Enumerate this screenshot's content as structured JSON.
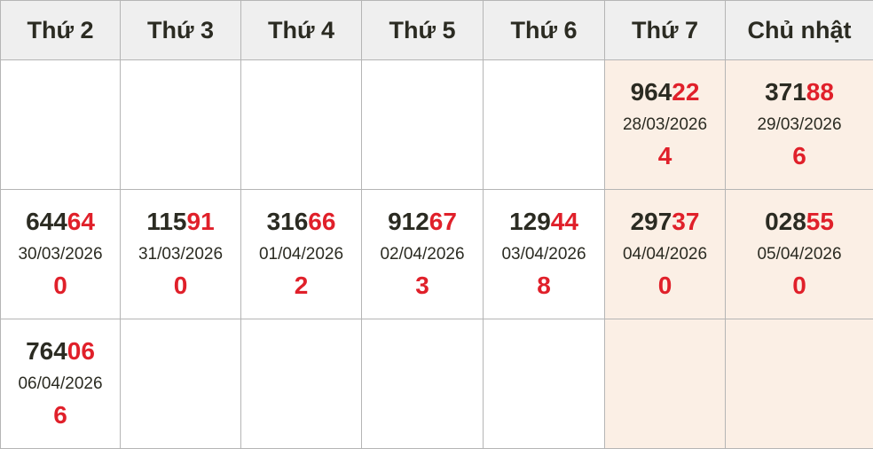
{
  "headers": [
    "Thứ 2",
    "Thứ 3",
    "Thứ 4",
    "Thứ 5",
    "Thứ 6",
    "Thứ 7",
    "Chủ nhật"
  ],
  "colors": {
    "accent": "#e0202a",
    "weekend_bg": "#fbefe5",
    "header_bg": "#efefef"
  },
  "rows": [
    [
      null,
      null,
      null,
      null,
      null,
      {
        "head": "964",
        "tail": "22",
        "date": "28/03/2026",
        "sum": "4"
      },
      {
        "head": "371",
        "tail": "88",
        "date": "29/03/2026",
        "sum": "6"
      }
    ],
    [
      {
        "head": "644",
        "tail": "64",
        "date": "30/03/2026",
        "sum": "0"
      },
      {
        "head": "115",
        "tail": "91",
        "date": "31/03/2026",
        "sum": "0"
      },
      {
        "head": "316",
        "tail": "66",
        "date": "01/04/2026",
        "sum": "2"
      },
      {
        "head": "912",
        "tail": "67",
        "date": "02/04/2026",
        "sum": "3"
      },
      {
        "head": "129",
        "tail": "44",
        "date": "03/04/2026",
        "sum": "8"
      },
      {
        "head": "297",
        "tail": "37",
        "date": "04/04/2026",
        "sum": "0"
      },
      {
        "head": "028",
        "tail": "55",
        "date": "05/04/2026",
        "sum": "0"
      }
    ],
    [
      {
        "head": "764",
        "tail": "06",
        "date": "06/04/2026",
        "sum": "6"
      },
      null,
      null,
      null,
      null,
      null,
      null
    ]
  ]
}
